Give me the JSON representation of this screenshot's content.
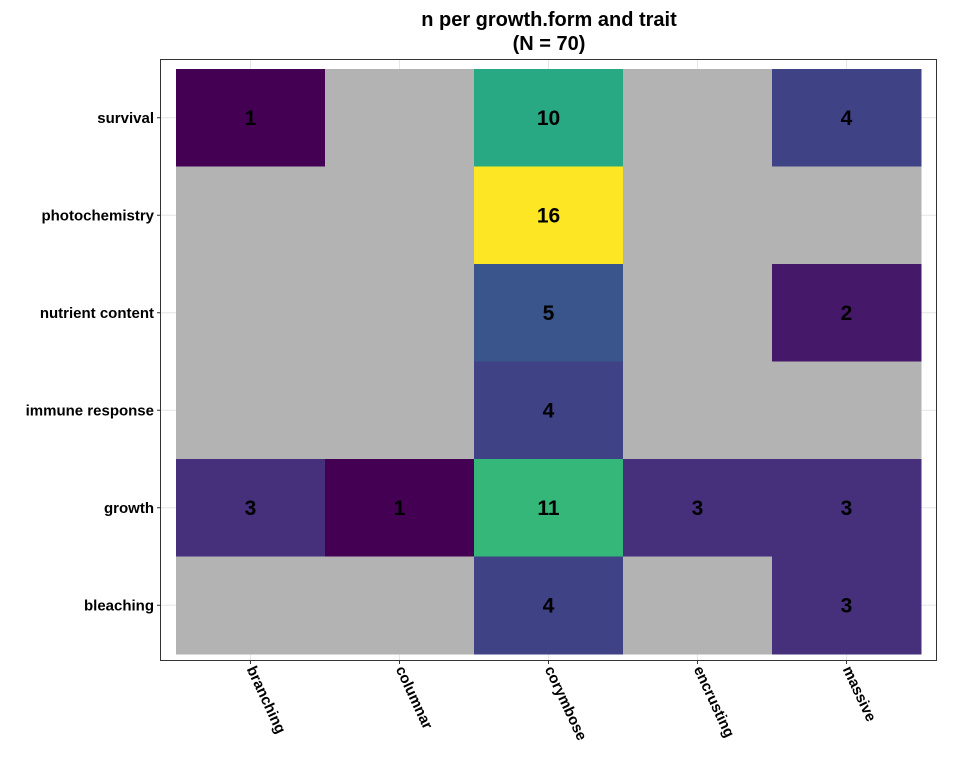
{
  "chart_data": {
    "type": "heatmap",
    "title": "n per growth.form and trait",
    "subtitle": "(N = 70)",
    "xlabel": "",
    "ylabel": "",
    "x_categories": [
      "branching",
      "columnar",
      "corymbose",
      "encrusting",
      "massive"
    ],
    "y_categories": [
      "survival",
      "photochemistry",
      "nutrient content",
      "immune response",
      "growth",
      "bleaching"
    ],
    "values": [
      [
        1,
        null,
        10,
        null,
        4
      ],
      [
        null,
        null,
        16,
        null,
        null
      ],
      [
        null,
        null,
        5,
        null,
        2
      ],
      [
        null,
        null,
        4,
        null,
        null
      ],
      [
        3,
        1,
        11,
        3,
        3
      ],
      [
        null,
        null,
        4,
        null,
        3
      ]
    ],
    "color_scale": "viridis",
    "missing_color": "#b3b3b3",
    "grid": true,
    "legend": "none"
  }
}
